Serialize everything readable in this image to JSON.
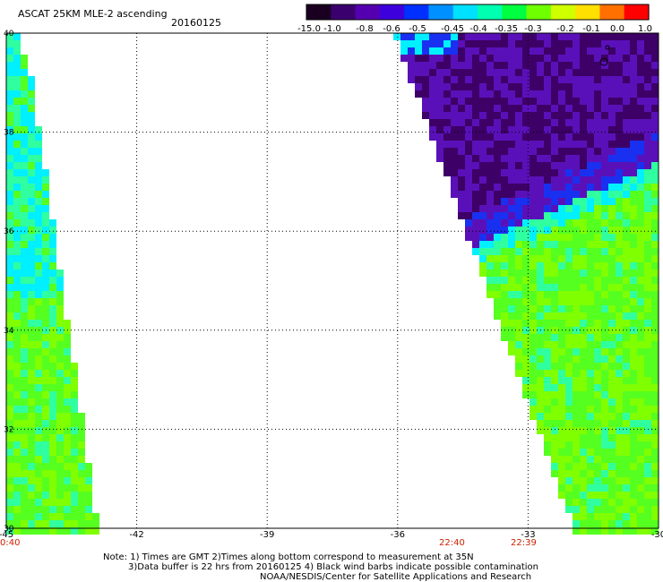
{
  "header": {
    "product": "ASCAT 25KM MLE-2 ascending",
    "date": "20160125"
  },
  "colorbar": {
    "labels": [
      "-15.0",
      "-1.0",
      "-0.8",
      "-0.6",
      "-0.5",
      "-0.45",
      "-0.4",
      "-0.35",
      "-0.3",
      "-0.2",
      "-0.1",
      "0.0",
      "1.0"
    ],
    "colors": [
      "#1a0020",
      "#3a006e",
      "#5500b0",
      "#3d00dd",
      "#0030ff",
      "#0090ff",
      "#00e0ff",
      "#00ffb0",
      "#00ff40",
      "#70ff00",
      "#d0ff00",
      "#ffe000",
      "#ff7000",
      "#ff0000"
    ]
  },
  "map": {
    "lon_labels": [
      "-45",
      "-42",
      "-39",
      "-36",
      "-33",
      "-30"
    ],
    "lat_labels": [
      "40",
      "38",
      "36",
      "34",
      "32",
      "30"
    ],
    "lon_range": [
      -45,
      -30
    ],
    "lat_range": [
      30,
      40
    ],
    "grid": "dotted",
    "swath_colors": {
      "deep": "#3d0066",
      "violet": "#5a10b8",
      "blue": "#1a30f0",
      "cyan": "#00f0ff",
      "aqua": "#30ffa0",
      "green": "#55ff20",
      "lime": "#80ff00"
    },
    "time_labels": [
      "0:40",
      "22:40",
      "22:39"
    ]
  },
  "notes": {
    "line1": "Note: 1) Times are GMT 2)Times along bottom correspond to measurement at 35N",
    "line2": "3)Data buffer is 22 hrs from 20160125 4) Black wind barbs indicate possible contamination",
    "line3": "NOAA/NESDIS/Center for Satellite Applications and Research"
  }
}
